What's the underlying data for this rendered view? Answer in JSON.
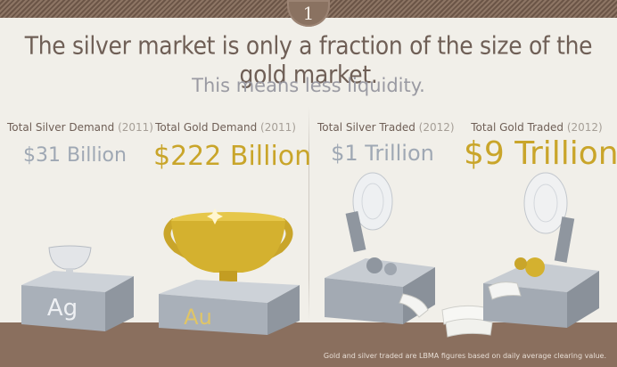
{
  "badge": {
    "number": "1"
  },
  "headline": "The silver market is only a fraction of the size of the gold market.",
  "subhead": "This means less liquidity.",
  "stats": [
    {
      "label": "Total Silver Demand",
      "year": "(2011)",
      "value": "$31 Billion"
    },
    {
      "label": "Total Gold Demand",
      "year": "(2011)",
      "value": "$222 Billion"
    },
    {
      "label": "Total Silver Traded",
      "year": "(2012)",
      "value": "$1 Trillion"
    },
    {
      "label": "Total Gold Traded",
      "year": "(2012)",
      "value": "$9 Trillion"
    }
  ],
  "pedestals": {
    "silver_symbol": "Ag",
    "gold_symbol": "Au"
  },
  "footnote": "Gold and silver traded are LBMA figures based on daily average clearing value.",
  "colors": {
    "silver": "#9fa8b4",
    "gold": "#c9a52a",
    "text": "#6f5f56",
    "floor": "#8a6f5e"
  }
}
